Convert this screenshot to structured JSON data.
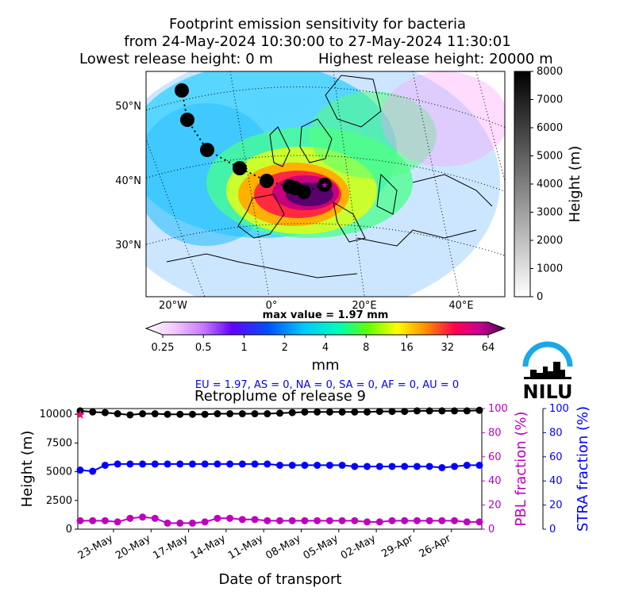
{
  "title": {
    "line1": "Footprint emission sensitivity for bacteria",
    "line2": "from 24-May-2024 10:30:00 to 27-May-2024 11:30:01",
    "line3_left": "Lowest release height: 0 m",
    "line3_right": "Highest release height: 20000 m"
  },
  "map": {
    "lat_labels": [
      "50°N",
      "40°N",
      "30°N"
    ],
    "lon_labels": [
      "20°W",
      "0°",
      "20°E",
      "40°E"
    ],
    "max_value_text": "max value = 1.97 mm",
    "height_colorbar": {
      "label": "Height (m)",
      "ticks": [
        0,
        1000,
        2000,
        3000,
        4000,
        5000,
        6000,
        7000,
        8000
      ]
    },
    "mm_colorbar": {
      "label": "mm",
      "ticks": [
        "0.25",
        "0.5",
        "1",
        "2",
        "4",
        "8",
        "16",
        "32",
        "64"
      ]
    }
  },
  "logo": {
    "text": "NILU"
  },
  "region_text": "EU = 1.97,  AS = 0,  NA = 0,  SA = 0,  AF = 0,  AU = 0",
  "colors": {
    "accent_blue": "#0000ff",
    "magenta": "#bf00bf",
    "black": "#000000"
  },
  "chart_data": {
    "type": "line",
    "title": "Retroplume of release 9",
    "xlabel": "Date of transport",
    "ylabel_left": "Height (m)",
    "ylabel_right1": "PBL fraction (%)",
    "ylabel_right2": "STRA fraction (%)",
    "x_tick_labels": [
      "23-May",
      "20-May",
      "17-May",
      "14-May",
      "11-May",
      "08-May",
      "05-May",
      "02-May",
      "29-Apr",
      "26-Apr"
    ],
    "ylim_left": [
      0,
      10500
    ],
    "y_ticks_left": [
      0,
      2500,
      5000,
      7500,
      10000
    ],
    "ylim_right": [
      0,
      100
    ],
    "y_ticks_right": [
      0,
      20,
      40,
      60,
      80,
      100
    ],
    "series": [
      {
        "name": "Height (m)",
        "color": "#000000",
        "axis": "left",
        "values": [
          10300,
          10200,
          10150,
          10050,
          9950,
          10050,
          10050,
          10000,
          10000,
          10000,
          10000,
          10050,
          10050,
          10050,
          10050,
          10050,
          10100,
          10150,
          10200,
          10200,
          10200,
          10200,
          10200,
          10200,
          10250,
          10250,
          10250,
          10300,
          10300,
          10300,
          10300,
          10300,
          10350
        ]
      },
      {
        "name": "PBL fraction (%)",
        "color": "#bf00bf",
        "axis": "right",
        "values": [
          7,
          7,
          7,
          6,
          9,
          10,
          9,
          5,
          5,
          5,
          6,
          9,
          9,
          8,
          8,
          7,
          7,
          7,
          7,
          7,
          7,
          7,
          7,
          6,
          6,
          7,
          7,
          7,
          7,
          7,
          7,
          6,
          6
        ]
      },
      {
        "name": "STRA fraction (%)",
        "color": "#0000ff",
        "axis": "right",
        "values": [
          49,
          48,
          53,
          54,
          54,
          54,
          54,
          54,
          54,
          54,
          54,
          54,
          54,
          54,
          54,
          54,
          53,
          53,
          53,
          53,
          53,
          53,
          52,
          52,
          52,
          52,
          52,
          52,
          52,
          51,
          52,
          53,
          53
        ]
      }
    ]
  }
}
